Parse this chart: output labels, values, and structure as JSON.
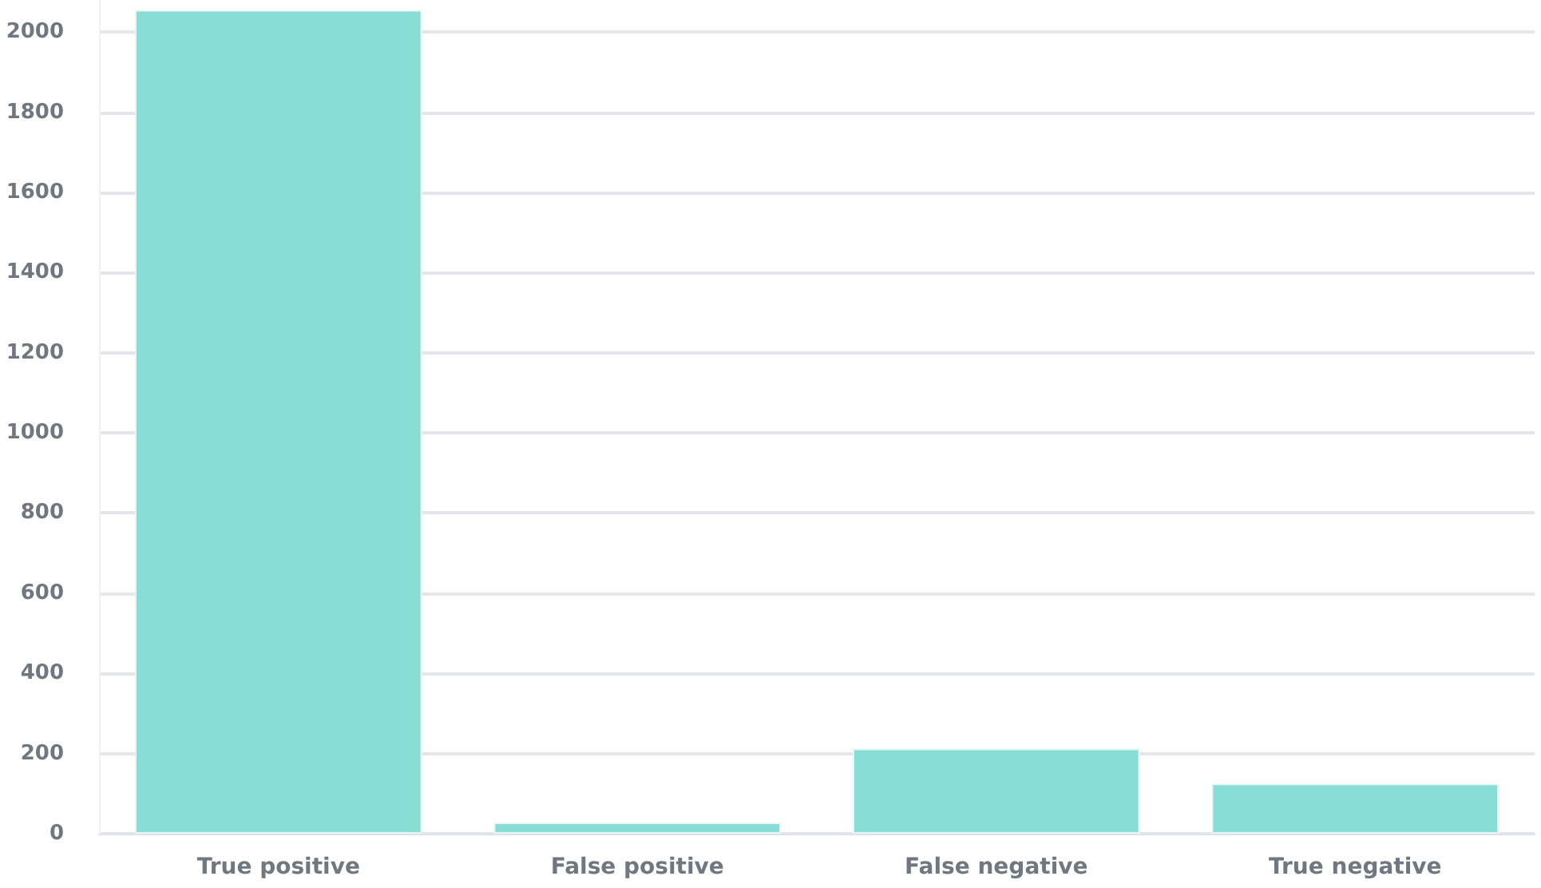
{
  "chart_data": {
    "type": "bar",
    "categories": [
      "True positive",
      "False positive",
      "False negative",
      "True negative"
    ],
    "values": [
      2055,
      28,
      212,
      125
    ],
    "color": "#88ddd4",
    "ylim": [
      0,
      2080
    ],
    "yticks": [
      0,
      200,
      400,
      600,
      800,
      1000,
      1200,
      1400,
      1600,
      1800,
      2000
    ],
    "grid": "y"
  }
}
